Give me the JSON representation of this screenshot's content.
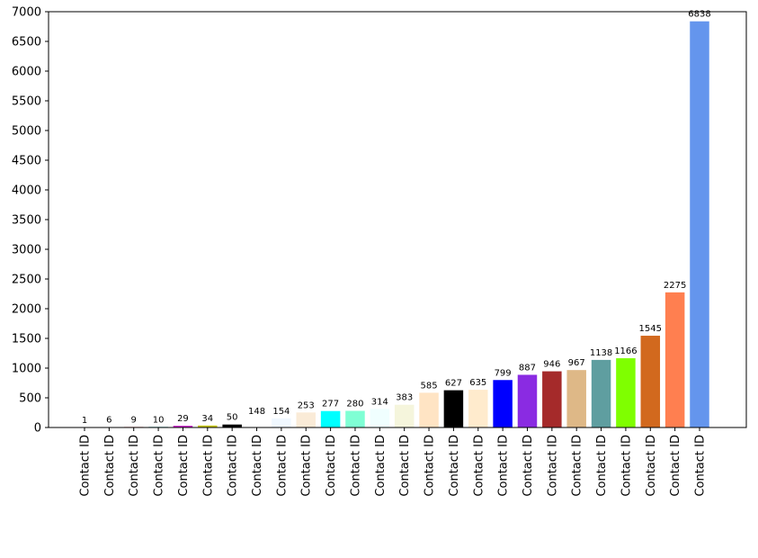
{
  "chart_data": {
    "type": "bar",
    "title": "",
    "xlabel": "",
    "ylabel": "",
    "ylim": [
      0,
      7000
    ],
    "yticks": [
      0,
      500,
      1000,
      1500,
      2000,
      2500,
      3000,
      3500,
      4000,
      4500,
      5000,
      5500,
      6000,
      6500,
      7000
    ],
    "grid": false,
    "categories": [
      "Contact ID",
      "Contact ID",
      "Contact ID",
      "Contact ID",
      "Contact ID",
      "Contact ID",
      "Contact ID",
      "Contact ID",
      "Contact ID",
      "Contact ID",
      "Contact ID",
      "Contact ID",
      "Contact ID",
      "Contact ID",
      "Contact ID",
      "Contact ID",
      "Contact ID",
      "Contact ID",
      "Contact ID",
      "Contact ID",
      "Contact ID",
      "Contact ID",
      "Contact ID",
      "Contact ID",
      "Contact ID",
      "Contact ID"
    ],
    "values": [
      1,
      6,
      9,
      10,
      29,
      34,
      50,
      148,
      154,
      253,
      277,
      280,
      314,
      383,
      585,
      627,
      635,
      799,
      887,
      946,
      967,
      1138,
      1166,
      1545,
      2275,
      6838
    ],
    "colors": [
      "#1f3a93",
      "#008000",
      "#d62728",
      "#17a2a0",
      "#c71fc7",
      "#c9c91a",
      "#000000",
      "#ffffff",
      "#f0f8ff",
      "#faebd7",
      "#00ffff",
      "#7fffd4",
      "#f0ffff",
      "#f5f5dc",
      "#ffe4c4",
      "#000000",
      "#ffebcd",
      "#0000ff",
      "#8a2be2",
      "#a52a2a",
      "#deb887",
      "#5f9ea0",
      "#7fff00",
      "#d2691e",
      "#ff7f50",
      "#6495ed"
    ]
  }
}
